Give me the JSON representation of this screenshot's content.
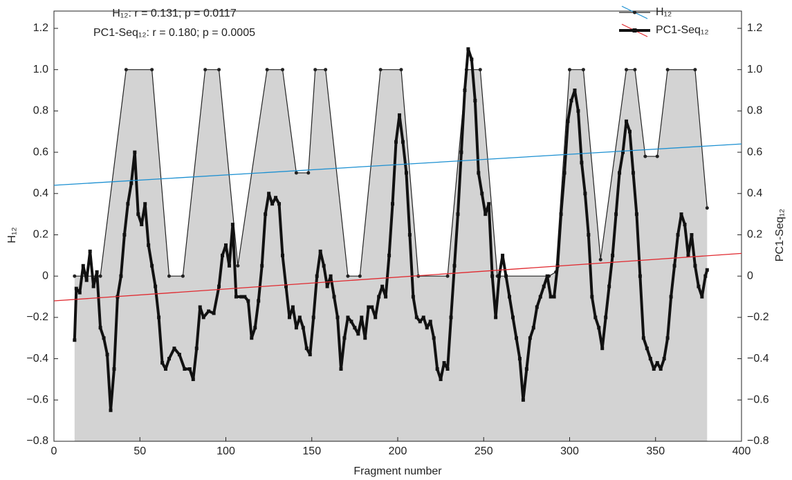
{
  "chart_data": {
    "type": "line",
    "annotations": [
      "H₁₂: r = 0.131; p = 0.0117",
      "PC1-Seq₁₂: r = 0.180; p = 0.0005"
    ],
    "x_label": "Fragment number",
    "y_label": "H₁₂",
    "y2_label": "PC1-Seq₁₂",
    "xlim": [
      0,
      400
    ],
    "xticks": [
      0,
      50,
      100,
      150,
      200,
      250,
      300,
      350,
      400
    ],
    "ylim": [
      -0.8,
      1.2
    ],
    "yticks": [
      {
        "value": -0.8,
        "label": "−0.8"
      },
      {
        "value": -0.6,
        "label": "−0.6"
      },
      {
        "value": -0.4,
        "label": "−0.4"
      },
      {
        "value": -0.2,
        "label": "−0.2"
      },
      0,
      0.2,
      0.4,
      0.6,
      0.8,
      {
        "value": 1.0,
        "label": "1.0"
      },
      1.2
    ],
    "y2lim": [
      -0.8,
      1.2
    ],
    "y2ticks": [
      {
        "value": -0.8,
        "label": "−0.8"
      },
      {
        "value": -0.6,
        "label": "−0.6"
      },
      {
        "value": -0.4,
        "label": "−0.4"
      },
      {
        "value": -0.2,
        "label": "−0.2"
      },
      0,
      0.2,
      0.4,
      0.6,
      0.8,
      {
        "value": 1.0,
        "label": "1.0"
      },
      1.2
    ],
    "fill_color": "#d3d3d3",
    "series": [
      {
        "name": "H₁₂",
        "color": "#222222",
        "x": [
          12,
          27,
          42,
          57,
          67,
          75,
          88,
          96,
          107,
          124,
          133,
          141,
          148,
          152,
          158,
          171,
          178,
          190,
          202,
          212,
          229,
          240,
          248,
          258,
          288,
          292,
          300,
          308,
          318,
          333,
          338,
          344,
          351,
          357,
          373,
          380
        ],
        "values": [
          0,
          0,
          1,
          1,
          0,
          0,
          1,
          1,
          0.05,
          1,
          1,
          0.5,
          0.5,
          1,
          1,
          0,
          0,
          1,
          1,
          0,
          0,
          1,
          1,
          0,
          0,
          0.02,
          1,
          1,
          0.08,
          1,
          1,
          0.58,
          0.58,
          1,
          1,
          0.33
        ]
      },
      {
        "name": "PC1-Seq₁₂",
        "color": "#111111",
        "axis": "y2",
        "x": [
          12,
          13,
          15,
          17,
          19,
          21,
          23,
          25,
          27,
          29,
          31,
          33,
          35,
          37,
          39,
          41,
          43,
          45,
          47,
          49,
          51,
          53,
          55,
          57,
          59,
          61,
          63,
          65,
          67,
          70,
          73,
          76,
          79,
          81,
          83,
          85,
          87,
          90,
          93,
          96,
          98,
          100,
          102,
          104,
          106,
          109,
          111,
          113,
          115,
          117,
          119,
          121,
          123,
          125,
          127,
          129,
          131,
          133,
          135,
          137,
          139,
          141,
          143,
          145,
          147,
          149,
          151,
          153,
          155,
          157,
          159,
          161,
          163,
          165,
          167,
          169,
          171,
          173,
          175,
          177,
          179,
          181,
          183,
          185,
          187,
          189,
          191,
          193,
          195,
          197,
          199,
          201,
          203,
          205,
          207,
          209,
          211,
          213,
          215,
          217,
          219,
          221,
          223,
          225,
          227,
          229,
          231,
          233,
          235,
          237,
          239,
          241,
          243,
          245,
          247,
          249,
          251,
          253,
          255,
          257,
          259,
          261,
          263,
          265,
          267,
          269,
          271,
          273,
          275,
          277,
          279,
          281,
          283,
          285,
          287,
          289,
          291,
          293,
          295,
          297,
          299,
          301,
          303,
          305,
          307,
          309,
          311,
          313,
          315,
          317,
          319,
          321,
          323,
          325,
          327,
          329,
          331,
          333,
          335,
          337,
          339,
          341,
          343,
          345,
          347,
          349,
          351,
          353,
          355,
          357,
          359,
          361,
          363,
          365,
          367,
          369,
          371,
          373,
          375,
          377,
          379,
          380
        ],
        "values": [
          -0.31,
          -0.06,
          -0.08,
          0.05,
          -0.02,
          0.12,
          -0.05,
          0.02,
          -0.25,
          -0.3,
          -0.38,
          -0.65,
          -0.45,
          -0.1,
          0.0,
          0.2,
          0.35,
          0.45,
          0.6,
          0.3,
          0.25,
          0.35,
          0.15,
          0.05,
          -0.05,
          -0.2,
          -0.42,
          -0.45,
          -0.4,
          -0.35,
          -0.38,
          -0.45,
          -0.45,
          -0.5,
          -0.35,
          -0.15,
          -0.2,
          -0.17,
          -0.18,
          -0.05,
          0.1,
          0.15,
          0.05,
          0.25,
          -0.1,
          -0.1,
          -0.1,
          -0.12,
          -0.3,
          -0.25,
          -0.12,
          0.05,
          0.3,
          0.4,
          0.35,
          0.38,
          0.35,
          0.1,
          -0.05,
          -0.2,
          -0.15,
          -0.25,
          -0.2,
          -0.25,
          -0.35,
          -0.38,
          -0.2,
          0.0,
          0.12,
          0.05,
          -0.05,
          0.0,
          -0.1,
          -0.2,
          -0.45,
          -0.3,
          -0.2,
          -0.22,
          -0.25,
          -0.28,
          -0.2,
          -0.3,
          -0.15,
          -0.15,
          -0.2,
          -0.1,
          -0.05,
          -0.1,
          0.1,
          0.35,
          0.65,
          0.78,
          0.65,
          0.5,
          0.2,
          -0.1,
          -0.2,
          -0.22,
          -0.2,
          -0.25,
          -0.22,
          -0.3,
          -0.45,
          -0.5,
          -0.42,
          -0.45,
          -0.2,
          0.05,
          0.3,
          0.6,
          0.9,
          1.1,
          1.05,
          0.85,
          0.5,
          0.4,
          0.3,
          0.35,
          0.0,
          -0.2,
          0.0,
          0.1,
          0.0,
          -0.1,
          -0.2,
          -0.3,
          -0.4,
          -0.6,
          -0.45,
          -0.3,
          -0.25,
          -0.15,
          -0.1,
          -0.05,
          0.0,
          -0.1,
          -0.1,
          0.05,
          0.3,
          0.5,
          0.75,
          0.85,
          0.9,
          0.8,
          0.55,
          0.4,
          0.2,
          -0.1,
          -0.2,
          -0.25,
          -0.35,
          -0.2,
          -0.05,
          0.1,
          0.3,
          0.5,
          0.6,
          0.75,
          0.7,
          0.5,
          0.3,
          0.0,
          -0.3,
          -0.35,
          -0.4,
          -0.45,
          -0.42,
          -0.45,
          -0.4,
          -0.3,
          -0.1,
          0.05,
          0.2,
          0.3,
          0.25,
          0.1,
          0.2,
          0.05,
          -0.05,
          -0.1,
          0.0,
          0.03
        ]
      }
    ],
    "trend_lines": [
      {
        "color": "#1a8fd1",
        "x": [
          0,
          400
        ],
        "values": [
          0.44,
          0.64
        ]
      },
      {
        "color": "#e0282e",
        "x": [
          0,
          400
        ],
        "values": [
          -0.12,
          0.11
        ]
      }
    ]
  }
}
